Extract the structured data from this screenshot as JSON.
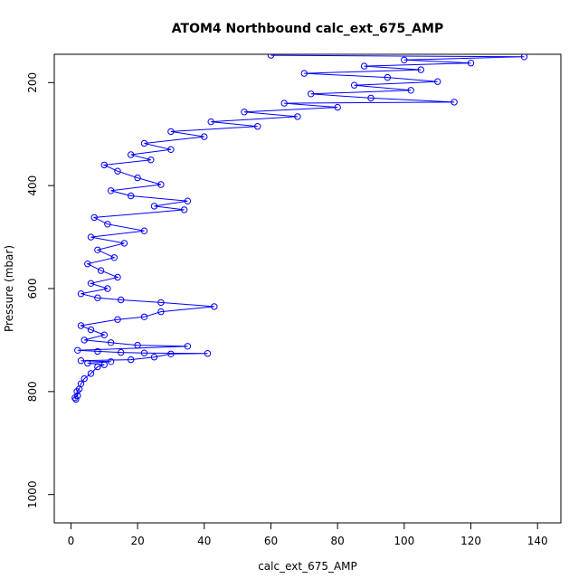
{
  "chart_data": {
    "type": "line",
    "title": "ATOM4 Northbound calc_ext_675_AMP",
    "xlabel": "calc_ext_675_AMP",
    "ylabel": "Pressure (mbar)",
    "xlim": [
      -5,
      147
    ],
    "ylim": [
      1055,
      145
    ],
    "y_reversed": true,
    "x_ticks": [
      0,
      20,
      40,
      60,
      80,
      100,
      120,
      140
    ],
    "y_ticks": [
      200,
      400,
      600,
      800,
      1000
    ],
    "grid": false,
    "legend": "none",
    "marker": "open-circle",
    "color": "#0000ff",
    "series": [
      {
        "values_note": "pressure profile, dense near 0-5",
        "points": [
          [
            1.5,
            815
          ],
          [
            1.2,
            812
          ],
          [
            2.0,
            808
          ],
          [
            1.8,
            800
          ],
          [
            2.5,
            795
          ],
          [
            3.0,
            785
          ],
          [
            4.0,
            775
          ],
          [
            6.0,
            765
          ],
          [
            8.0,
            752
          ],
          [
            12.0,
            742
          ],
          [
            10.0,
            748
          ],
          [
            5.0,
            745
          ],
          [
            3.0,
            740
          ],
          [
            18.0,
            738
          ],
          [
            25.0,
            733
          ],
          [
            41.0,
            726
          ],
          [
            30.0,
            727
          ],
          [
            22.0,
            725
          ],
          [
            15.0,
            724
          ],
          [
            8.0,
            722
          ],
          [
            2.0,
            720
          ],
          [
            35.0,
            712
          ],
          [
            20.0,
            710
          ],
          [
            12.0,
            705
          ],
          [
            4.0,
            700
          ],
          [
            10.0,
            690
          ],
          [
            6.0,
            680
          ],
          [
            3.0,
            672
          ],
          [
            14.0,
            660
          ],
          [
            22.0,
            655
          ],
          [
            27.0,
            645
          ],
          [
            43.0,
            635
          ],
          [
            27.0,
            627
          ],
          [
            15.0,
            622
          ],
          [
            8.0,
            618
          ],
          [
            3.0,
            610
          ],
          [
            11.0,
            600
          ],
          [
            6.0,
            590
          ],
          [
            14.0,
            578
          ],
          [
            9.0,
            565
          ],
          [
            5.0,
            552
          ],
          [
            13.0,
            540
          ],
          [
            8.0,
            525
          ],
          [
            16.0,
            512
          ],
          [
            6.0,
            500
          ],
          [
            22.0,
            488
          ],
          [
            11.0,
            475
          ],
          [
            7.0,
            462
          ],
          [
            34.0,
            447
          ],
          [
            25.0,
            440
          ],
          [
            35.0,
            430
          ],
          [
            18.0,
            420
          ],
          [
            12.0,
            410
          ],
          [
            27.0,
            398
          ],
          [
            20.0,
            385
          ],
          [
            14.0,
            372
          ],
          [
            10.0,
            360
          ],
          [
            24.0,
            350
          ],
          [
            18.0,
            340
          ],
          [
            30.0,
            330
          ],
          [
            22.0,
            318
          ],
          [
            40.0,
            305
          ],
          [
            30.0,
            295
          ],
          [
            56.0,
            285
          ],
          [
            42.0,
            276
          ],
          [
            68.0,
            266
          ],
          [
            52.0,
            257
          ],
          [
            80.0,
            248
          ],
          [
            64.0,
            240
          ],
          [
            115.0,
            238
          ],
          [
            90.0,
            230
          ],
          [
            72.0,
            222
          ],
          [
            102.0,
            215
          ],
          [
            85.0,
            205
          ],
          [
            110.0,
            198
          ],
          [
            95.0,
            190
          ],
          [
            70.0,
            182
          ],
          [
            105.0,
            175
          ],
          [
            88.0,
            168
          ],
          [
            120.0,
            162
          ],
          [
            100.0,
            156
          ],
          [
            136.0,
            150
          ],
          [
            60.0,
            147
          ]
        ]
      }
    ]
  }
}
